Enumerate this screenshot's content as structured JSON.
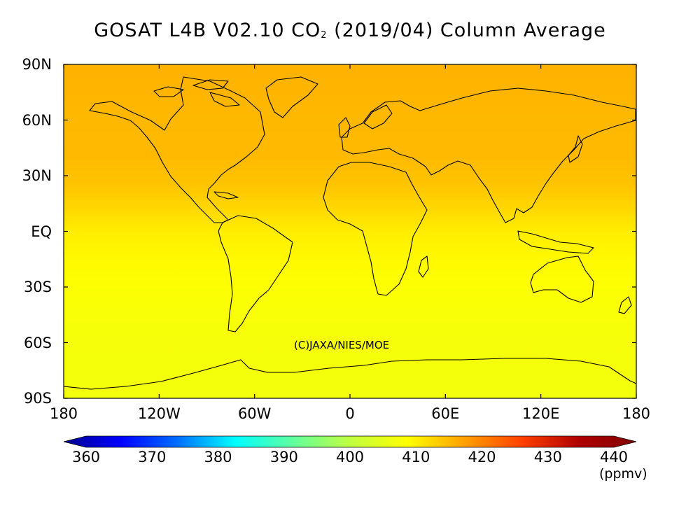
{
  "title": {
    "prefix": "GOSAT L4B V02.10 CO",
    "subscript": "2",
    "suffix": " (2019/04) Column Average"
  },
  "map": {
    "lat_labels": [
      "90N",
      "60N",
      "30N",
      "EQ",
      "30S",
      "60S",
      "90S"
    ],
    "lon_labels": [
      "180",
      "120W",
      "60W",
      "0",
      "60E",
      "120E",
      "180"
    ],
    "credit": "(C)JAXA/NIES/MOE",
    "lat_profile": [
      {
        "lat": 90,
        "value": 414.5
      },
      {
        "lat": 60,
        "value": 414.0
      },
      {
        "lat": 40,
        "value": 413.8
      },
      {
        "lat": 25,
        "value": 413.0
      },
      {
        "lat": 10,
        "value": 411.0
      },
      {
        "lat": 0,
        "value": 409.5
      },
      {
        "lat": -15,
        "value": 408.5
      },
      {
        "lat": -30,
        "value": 407.7
      },
      {
        "lat": -50,
        "value": 407.0
      },
      {
        "lat": -90,
        "value": 406.5
      }
    ]
  },
  "colorbar": {
    "min": 360,
    "max": 440,
    "tick_labels": [
      "360",
      "370",
      "380",
      "390",
      "400",
      "410",
      "420",
      "430",
      "440"
    ],
    "units": "(ppmv)",
    "colors": [
      "#00008f",
      "#0000ff",
      "#0070ff",
      "#00ffff",
      "#60ff9f",
      "#c0ff40",
      "#ffff00",
      "#ffa000",
      "#ff4000",
      "#b00000",
      "#800000"
    ]
  }
}
